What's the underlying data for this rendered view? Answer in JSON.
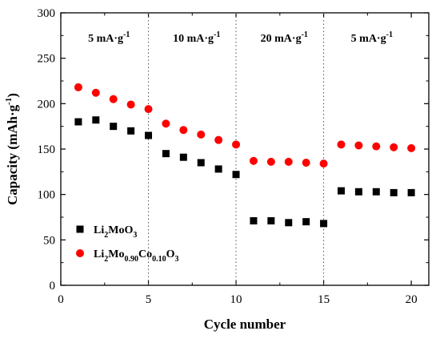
{
  "chart_data": {
    "type": "scatter",
    "title": "",
    "xlabel": "Cycle number",
    "ylabel": "Capacity (mAh·g",
    "ylabel_sup": "-1",
    "ylabel_close": ")",
    "xlim": [
      0,
      21
    ],
    "ylim": [
      0,
      300
    ],
    "xticks": [
      0,
      5,
      10,
      15,
      20
    ],
    "yticks": [
      0,
      50,
      100,
      150,
      200,
      250,
      300
    ],
    "grid": false,
    "legend_position": "bottom-left",
    "region_dividers": [
      5,
      10,
      15
    ],
    "regions": [
      {
        "label": "5 mA·g",
        "sup": "-1",
        "x_center": 2.75
      },
      {
        "label": "10 mA·g",
        "sup": "-1",
        "x_center": 7.75
      },
      {
        "label": "20 mA·g",
        "sup": "-1",
        "x_center": 12.75
      },
      {
        "label": "5 mA·g",
        "sup": "-1",
        "x_center": 17.75
      }
    ],
    "series": [
      {
        "name": "Li2MoO3",
        "name_parts": [
          {
            "t": "Li",
            "sub": false
          },
          {
            "t": "2",
            "sub": true
          },
          {
            "t": "MoO",
            "sub": false
          },
          {
            "t": "3",
            "sub": true
          }
        ],
        "marker": "square",
        "color": "#000000",
        "x": [
          1,
          2,
          3,
          4,
          5,
          6,
          7,
          8,
          9,
          10,
          11,
          12,
          13,
          14,
          15,
          16,
          17,
          18,
          19,
          20
        ],
        "y": [
          180,
          182,
          175,
          170,
          165,
          145,
          141,
          135,
          128,
          122,
          71,
          71,
          69,
          70,
          68,
          104,
          103,
          103,
          102,
          102
        ]
      },
      {
        "name": "Li2Mo0.90Co0.10O3",
        "name_parts": [
          {
            "t": "Li",
            "sub": false
          },
          {
            "t": "2",
            "sub": true
          },
          {
            "t": "Mo",
            "sub": false
          },
          {
            "t": "0.90",
            "sub": true
          },
          {
            "t": "Co",
            "sub": false
          },
          {
            "t": "0.10",
            "sub": true
          },
          {
            "t": "O",
            "sub": false
          },
          {
            "t": "3",
            "sub": true
          }
        ],
        "marker": "circle",
        "color": "#ff0000",
        "x": [
          1,
          2,
          3,
          4,
          5,
          6,
          7,
          8,
          9,
          10,
          11,
          12,
          13,
          14,
          15,
          16,
          17,
          18,
          19,
          20
        ],
        "y": [
          218,
          212,
          205,
          199,
          194,
          178,
          171,
          166,
          160,
          155,
          137,
          136,
          136,
          135,
          134,
          155,
          154,
          153,
          152,
          151
        ]
      }
    ]
  }
}
